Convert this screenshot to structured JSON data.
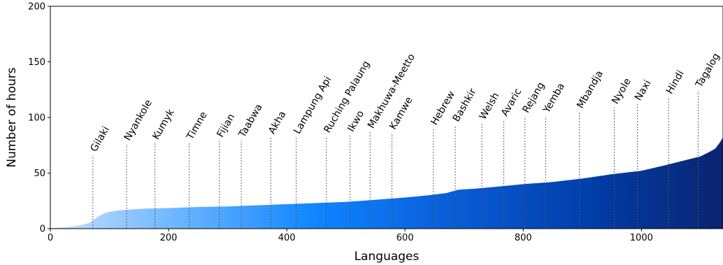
{
  "chart_data": {
    "type": "area",
    "xlabel": "Languages",
    "ylabel": "Number of hours",
    "xlim": [
      0,
      1138
    ],
    "ylim": [
      0,
      200
    ],
    "x_ticks": [
      0,
      200,
      400,
      600,
      800,
      1000
    ],
    "y_ticks": [
      0,
      50,
      100,
      150,
      200
    ],
    "grid": false,
    "gradient_colors": [
      "#c8e1ff",
      "#66b3ff",
      "#0d84ff",
      "#0a5cd6",
      "#003eaa",
      "#0a2470"
    ],
    "curve": [
      {
        "x": 0,
        "y": 0.5
      },
      {
        "x": 20,
        "y": 1
      },
      {
        "x": 40,
        "y": 2
      },
      {
        "x": 55,
        "y": 3.5
      },
      {
        "x": 65,
        "y": 5
      },
      {
        "x": 72,
        "y": 7
      },
      {
        "x": 78,
        "y": 10
      },
      {
        "x": 85,
        "y": 12
      },
      {
        "x": 95,
        "y": 14.5
      },
      {
        "x": 110,
        "y": 16
      },
      {
        "x": 130,
        "y": 17
      },
      {
        "x": 160,
        "y": 18
      },
      {
        "x": 200,
        "y": 18.5
      },
      {
        "x": 250,
        "y": 19.5
      },
      {
        "x": 300,
        "y": 20
      },
      {
        "x": 350,
        "y": 21
      },
      {
        "x": 400,
        "y": 22
      },
      {
        "x": 450,
        "y": 23
      },
      {
        "x": 500,
        "y": 24
      },
      {
        "x": 550,
        "y": 26
      },
      {
        "x": 600,
        "y": 28
      },
      {
        "x": 640,
        "y": 30
      },
      {
        "x": 670,
        "y": 32
      },
      {
        "x": 690,
        "y": 35
      },
      {
        "x": 720,
        "y": 36
      },
      {
        "x": 760,
        "y": 38
      },
      {
        "x": 800,
        "y": 40
      },
      {
        "x": 850,
        "y": 42
      },
      {
        "x": 900,
        "y": 45
      },
      {
        "x": 950,
        "y": 49
      },
      {
        "x": 1000,
        "y": 52
      },
      {
        "x": 1040,
        "y": 57
      },
      {
        "x": 1070,
        "y": 61
      },
      {
        "x": 1100,
        "y": 65
      },
      {
        "x": 1115,
        "y": 69
      },
      {
        "x": 1125,
        "y": 72
      },
      {
        "x": 1132,
        "y": 77
      },
      {
        "x": 1138,
        "y": 82
      }
    ],
    "annotations": [
      {
        "label": "Gilaki",
        "x": 72,
        "y": 66
      },
      {
        "label": "Nyankole",
        "x": 129,
        "y": 76
      },
      {
        "label": "Kumyk",
        "x": 177,
        "y": 77
      },
      {
        "label": "Timne",
        "x": 235,
        "y": 77
      },
      {
        "label": "Fijian",
        "x": 286,
        "y": 79
      },
      {
        "label": "Taabwa",
        "x": 323,
        "y": 79
      },
      {
        "label": "Akha",
        "x": 373,
        "y": 82
      },
      {
        "label": "Lampung Api",
        "x": 416,
        "y": 82
      },
      {
        "label": "Ruching Palaung",
        "x": 467,
        "y": 83
      },
      {
        "label": "Ikwo",
        "x": 507,
        "y": 84
      },
      {
        "label": "Makhuwa-Meetto",
        "x": 541,
        "y": 87
      },
      {
        "label": "Kamwe",
        "x": 578,
        "y": 86
      },
      {
        "label": "Hebrew",
        "x": 648,
        "y": 90
      },
      {
        "label": "Bashkir",
        "x": 685,
        "y": 93
      },
      {
        "label": "Welsh",
        "x": 730,
        "y": 95
      },
      {
        "label": "Avaric",
        "x": 767,
        "y": 98
      },
      {
        "label": "Rejang",
        "x": 803,
        "y": 101
      },
      {
        "label": "Yemba",
        "x": 838,
        "y": 101
      },
      {
        "label": "Mbandja",
        "x": 895,
        "y": 105
      },
      {
        "label": "Nyole",
        "x": 954,
        "y": 109
      },
      {
        "label": "Naxi",
        "x": 993,
        "y": 112
      },
      {
        "label": "Hindi",
        "x": 1046,
        "y": 118
      },
      {
        "label": "Tagalog",
        "x": 1096,
        "y": 124
      }
    ]
  }
}
